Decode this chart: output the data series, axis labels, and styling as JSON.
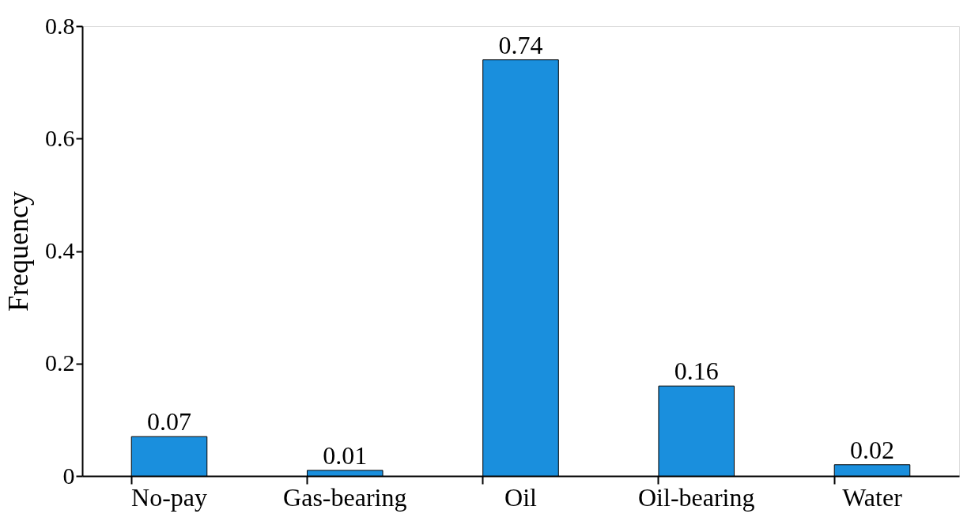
{
  "chart_data": {
    "type": "bar",
    "ylabel": "Frequency",
    "categories": [
      "No-pay",
      "Gas-bearing",
      "Oil",
      "Oil-bearing",
      "Water"
    ],
    "values": [
      0.07,
      0.01,
      0.74,
      0.16,
      0.02
    ],
    "color": "#1a8fdd",
    "ylim": [
      0,
      0.8
    ],
    "yticks": [
      0,
      0.2,
      0.4,
      0.6,
      0.8
    ],
    "data_labels": true,
    "grid": false
  }
}
